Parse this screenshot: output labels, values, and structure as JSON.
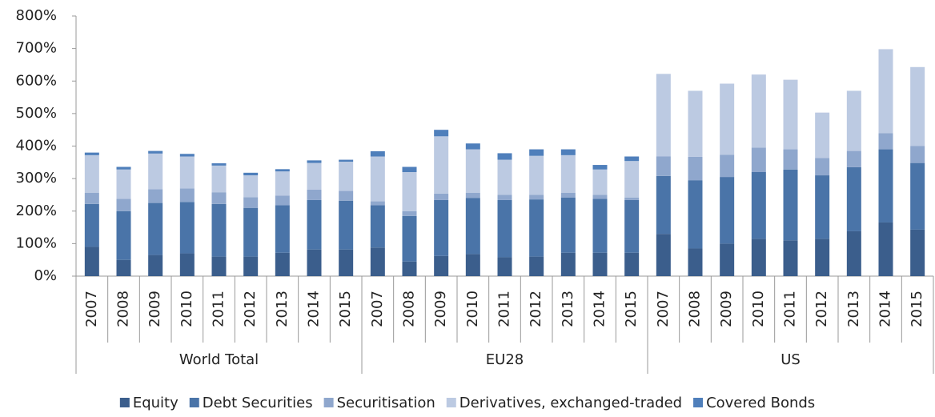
{
  "chart_data": {
    "type": "stacked_bar",
    "categories": [
      "2007",
      "2008",
      "2009",
      "2010",
      "2011",
      "2012",
      "2013",
      "2014",
      "2015",
      "2007",
      "2008",
      "2009",
      "2010",
      "2011",
      "2012",
      "2013",
      "2014",
      "2015",
      "2007",
      "2008",
      "2009",
      "2010",
      "2011",
      "2012",
      "2013",
      "2014",
      "2015"
    ],
    "group_labels": [
      "World Total",
      "EU28",
      "US"
    ],
    "series": [
      {
        "name": "Equity",
        "color": "#3b5e8c",
        "values": [
          90,
          50,
          65,
          70,
          60,
          60,
          72,
          82,
          82,
          88,
          45,
          62,
          68,
          58,
          60,
          72,
          72,
          72,
          130,
          85,
          100,
          115,
          110,
          115,
          138,
          165,
          143
        ]
      },
      {
        "name": "Debt Securities",
        "color": "#4a74a8",
        "values": [
          132,
          150,
          160,
          158,
          162,
          150,
          146,
          152,
          150,
          130,
          140,
          172,
          172,
          176,
          176,
          170,
          166,
          162,
          178,
          210,
          205,
          205,
          218,
          195,
          197,
          225,
          205
        ]
      },
      {
        "name": "Securitisation",
        "color": "#8fa7cd",
        "values": [
          34,
          38,
          42,
          42,
          36,
          33,
          30,
          32,
          30,
          12,
          15,
          20,
          16,
          16,
          14,
          14,
          12,
          8,
          60,
          72,
          68,
          75,
          62,
          53,
          50,
          50,
          52
        ]
      },
      {
        "name": "Derivatives, exchanged-traded",
        "color": "#bccae2",
        "values": [
          116,
          90,
          110,
          98,
          82,
          67,
          74,
          82,
          90,
          138,
          120,
          176,
          134,
          108,
          120,
          116,
          78,
          112,
          254,
          203,
          219,
          225,
          214,
          140,
          185,
          258,
          243
        ]
      },
      {
        "name": "Covered Bonds",
        "color": "#4f7fbb",
        "values": [
          8,
          8,
          8,
          8,
          7,
          8,
          7,
          8,
          6,
          16,
          16,
          20,
          18,
          20,
          20,
          18,
          14,
          14,
          0,
          0,
          0,
          0,
          0,
          0,
          0,
          0,
          0
        ]
      }
    ],
    "ylim": [
      0,
      800
    ],
    "yticks": [
      {
        "value": 0,
        "label": "0%"
      },
      {
        "value": 100,
        "label": "100%"
      },
      {
        "value": 200,
        "label": "200%"
      },
      {
        "value": 300,
        "label": "300%"
      },
      {
        "value": 400,
        "label": "400%"
      },
      {
        "value": 500,
        "label": "500%"
      },
      {
        "value": 600,
        "label": "600%"
      },
      {
        "value": 700,
        "label": "700%"
      },
      {
        "value": 800,
        "label": "800%"
      }
    ],
    "grid": false,
    "legend": "bottom"
  }
}
